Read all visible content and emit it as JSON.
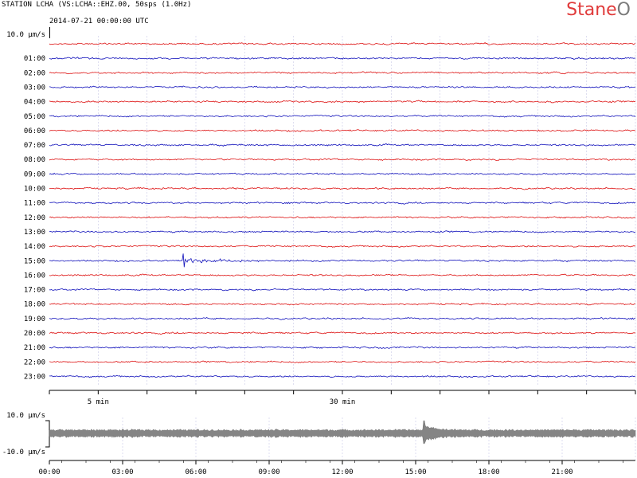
{
  "header": {
    "station": "STATION LCHA (VS:LCHA::EHZ.00, 50sps (1.0Hz)",
    "start_time": "2014-07-21 00:00:00 UTC"
  },
  "logo": {
    "part1": "Sta",
    "part2": "ne",
    "part3": "O"
  },
  "colors": {
    "red": "#dd1111",
    "blue": "#1111bb",
    "grey": "#707070",
    "grid": "#c8c8e6"
  },
  "chart_data": [
    {
      "type": "line",
      "title": "STATION LCHA (VS:LCHA::EHZ.00, 50sps (1.0Hz)",
      "subtitle": "2014-07-21 00:00:00 UTC",
      "scale_label": "10.0 µm/s",
      "row_labels": [
        "01:00",
        "02:00",
        "03:00",
        "04:00",
        "05:00",
        "06:00",
        "07:00",
        "08:00",
        "09:00",
        "10:00",
        "11:00",
        "12:00",
        "13:00",
        "14:00",
        "15:00",
        "16:00",
        "17:00",
        "18:00",
        "19:00",
        "20:00",
        "21:00",
        "22:00",
        "23:00"
      ],
      "xlabels": [
        "5 min",
        "30 min"
      ],
      "xlim_minutes": [
        0,
        60
      ],
      "rows": 24,
      "row_colors": [
        "red",
        "blue"
      ],
      "grid": true,
      "events": [
        {
          "row": 15,
          "minute_start": 13.7,
          "minute_end": 28,
          "amplitude": "high"
        }
      ]
    },
    {
      "type": "line",
      "ylabels": [
        "10.0 µm/s",
        "-10.0 µm/s"
      ],
      "ylim": [
        -10,
        10
      ],
      "xlabels": [
        "00:00",
        "03:00",
        "06:00",
        "09:00",
        "12:00",
        "15:00",
        "18:00",
        "21:00"
      ],
      "xlim_hours": [
        0,
        24
      ],
      "events": [
        {
          "hour": 15.35,
          "amplitude": "high"
        }
      ]
    }
  ]
}
